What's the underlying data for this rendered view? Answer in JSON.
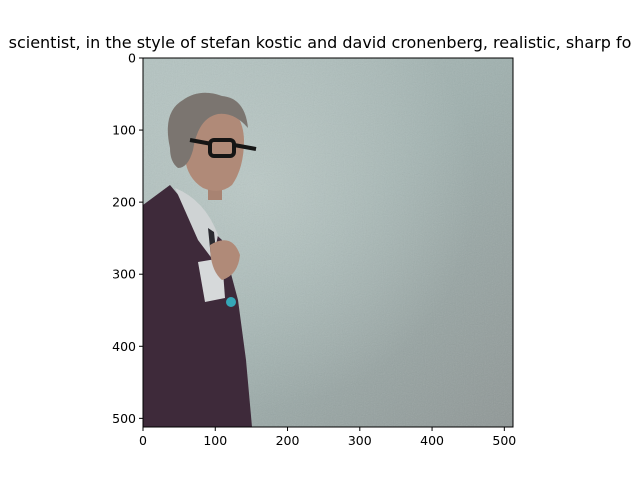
{
  "chart_data": {
    "type": "image",
    "title": "scientist,  in the style of stefan kostic and david cronenberg, realistic, sharp fo",
    "xlabel": "",
    "ylabel": "",
    "xlim": [
      0,
      512
    ],
    "ylim": [
      512,
      0
    ],
    "xticks": [
      0,
      100,
      200,
      300,
      400,
      500
    ],
    "yticks": [
      0,
      100,
      200,
      300,
      400,
      500
    ],
    "xtick_labels": [
      "0",
      "100",
      "200",
      "300",
      "400",
      "500"
    ],
    "ytick_labels": [
      "0",
      "100",
      "200",
      "300",
      "400",
      "500"
    ],
    "image_description": "portrait of an elderly scientist with messy gray hair and black glasses, wearing a dark purple suit jacket over a white shirt, standing on the left side against a textured gray-teal background",
    "colors": {
      "background_light": "#a9b8b6",
      "background_dark": "#8e9896",
      "jacket": "#3e2a3a",
      "shirt": "#cfd3d4",
      "hair": "#7b7570",
      "skin": "#b08a78"
    }
  }
}
